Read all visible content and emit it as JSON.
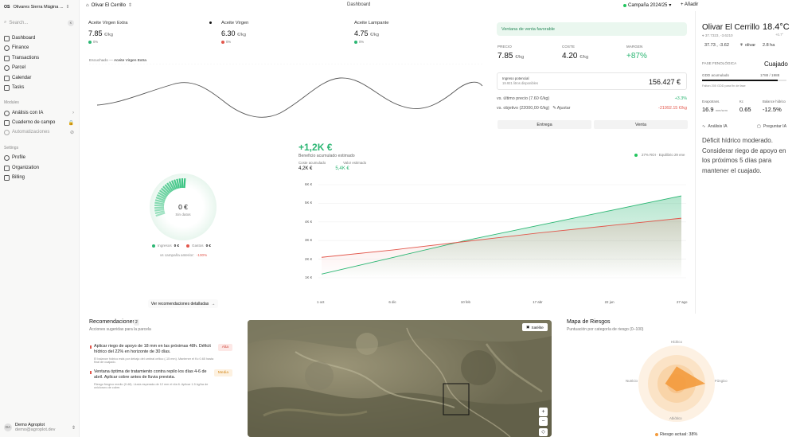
{
  "sidebar": {
    "org_badge": "OS",
    "org_name": "Olivares Sierra Mágina ...",
    "search_placeholder": "Search...",
    "search_shortcut": "K",
    "items": [
      {
        "label": "Dashboard",
        "icon": "dashboard-icon"
      },
      {
        "label": "Finance",
        "icon": "finance-icon"
      },
      {
        "label": "Transactions",
        "icon": "transactions-icon"
      },
      {
        "label": "Parcel",
        "icon": "parcel-icon"
      },
      {
        "label": "Calendar",
        "icon": "calendar-icon"
      },
      {
        "label": "Tasks",
        "icon": "tasks-icon"
      }
    ],
    "modules_label": "Modules",
    "modules": [
      {
        "label": "Análisis con IA",
        "tail": "›"
      },
      {
        "label": "Cuaderno de campo",
        "tail": "🔒"
      },
      {
        "label": "Automatizaciones",
        "tail": "⊘"
      }
    ],
    "settings_label": "Settings",
    "settings": [
      {
        "label": "Profile"
      },
      {
        "label": "Organization"
      },
      {
        "label": "Billing"
      }
    ],
    "user": {
      "initials": "DA",
      "name": "Demo Agroplot",
      "email": "demo@agroplot.dev"
    }
  },
  "topbar": {
    "parcel": "Olivar El Cerrillo",
    "title": "Dashboard",
    "campaign": "Campaña 2024/25",
    "add": "Añadir"
  },
  "prices": [
    {
      "label": "Aceite Virgen Extra",
      "value": "7.85",
      "unit": "€/kg",
      "change": "0%",
      "color": "#2bb673"
    },
    {
      "label": "Aceite Virgen",
      "value": "6.30",
      "unit": "€/kg",
      "change": "0%",
      "color": "#e2574c"
    },
    {
      "label": "Aceite Lampante",
      "value": "4.75",
      "unit": "€/kg",
      "change": "0%",
      "color": "#2bb673"
    }
  ],
  "price_chart": {
    "caption_prefix": "Escuchado —",
    "caption_series": "Aceite Virgen Extra"
  },
  "donut": {
    "value": "0 €",
    "sub": "Sin datos",
    "income_label": "Ingresos",
    "income_val": "0 €",
    "cost_label": "Gastos",
    "cost_val": "0 €",
    "vs_label": "vs campaña anterior:",
    "vs_val": "-100%"
  },
  "detailed_button": "Ver recomendaciones detalladas",
  "profit": {
    "value": "+1,2K €",
    "sub": "Beneficio acumulado estimado",
    "cost_label": "Coste acumulado",
    "income_label": "Valor estimado",
    "cost_val": "4,2K €",
    "income_val": "5,4K €",
    "legend": "27% ROI · Equilibrio 29 ene"
  },
  "chart_data": {
    "type": "area",
    "x": [
      "1 oct",
      "6 dic",
      "10 feb",
      "17 abr",
      "22 jun",
      "27 ago"
    ],
    "y_ticks": [
      "1K €",
      "2K €",
      "3K €",
      "4K €",
      "5K €",
      "6K €"
    ],
    "ylim": [
      1000,
      6000
    ],
    "series": [
      {
        "values": [
          1200,
          2100,
          3000,
          3800,
          4600,
          5400
        ],
        "color": "#2bb673"
      },
      {
        "values": [
          2100,
          2500,
          2950,
          3400,
          3800,
          4200
        ],
        "color": "#e2574c"
      }
    ]
  },
  "sale_panel": {
    "banner": "Ventana de venta favorable",
    "kpis": [
      {
        "label": "PRECIO",
        "value": "7.85",
        "unit": "€/kg"
      },
      {
        "label": "COSTE",
        "value": "4.20",
        "unit": "€/kg"
      },
      {
        "label": "MARGEN",
        "value": "+87%",
        "unit": ""
      }
    ],
    "revenue_label": "Ingreso potencial",
    "revenue_sub": "19.921 litros disponibles",
    "revenue_value": "156.427 €",
    "cmp1_label": "vs. último precio (7.60 €/kg)",
    "cmp1_val": "+3.3%",
    "cmp2_label": "vs. objetivo (22000,00 €/kg)",
    "cmp2_adjust": "Ajustar",
    "cmp2_val": "-21992.15 €/kg",
    "tab1": "Entrega",
    "tab2": "Venta"
  },
  "right_panel": {
    "title": "Olivar El Cerrillo",
    "temp": "18.4°C",
    "coords": "37.7323, -3.6210",
    "temp_sub": "+0.7°",
    "chips": [
      "37.73 , -3.62",
      "olivar",
      "2.8 ha"
    ],
    "phase_label": "FASE FENOLÓGICA",
    "phase_val": "Cuajado",
    "gdd_label": "GDD acumulado",
    "gdd_val": "1788 / 1988",
    "gdd_pct": 90,
    "gdd_note": "Faltan 200 GDD para fin de fase",
    "metrics": [
      {
        "label": "Evapotrans.",
        "value": "16.9",
        "unit": "mm/sem"
      },
      {
        "label": "Kc",
        "value": "0.65",
        "unit": ""
      },
      {
        "label": "Balance hídrico",
        "value": "-12.5%",
        "unit": ""
      }
    ],
    "ai_label": "Análisis IA",
    "ask_label": "Preguntar IA",
    "ai_text": "Déficit hídrico moderado. Considerar riego de apoyo en los próximos 5 días para mantener el cuajado."
  },
  "recommendations": {
    "title": "Recomendaciones",
    "count": "2",
    "sub": "Acciones sugeridas para la parcela",
    "items": [
      {
        "text": "Aplicar riego de apoyo de 18 mm en las próximas 48h. Déficit hídrico del 22% en horizonte de 30 días.",
        "detail": "El balance hídrico está por debajo del umbral crítico (-15 mm). Mantener el Kc 0.65 hasta final de cuajado.",
        "tag": "Alta",
        "tag_bg": "#fde8e6",
        "tag_color": "#d0453a"
      },
      {
        "text": "Ventana óptima de tratamiento contra repilo los días 4-6 de abril. Aplicar cobre antes de lluvia prevista.",
        "detail": "Riesgo fúngico medio (0.48). Lluvia esperada de 12 mm el día 6. Aplicar 1.5 kg/ha de oxicloruro de cobre.",
        "tag": "Media",
        "tag_bg": "#fdf1e0",
        "tag_color": "#d48a1c"
      }
    ]
  },
  "map": {
    "satellite": "Satélite",
    "zoom_in": "+",
    "zoom_out": "−"
  },
  "risk": {
    "title": "Mapa de Riesgos",
    "sub": "Puntuación por categoría de riesgo (0–100)",
    "axes": [
      "Hídrico",
      "Fúngico",
      "Abiótico",
      "Nutricio"
    ],
    "values": [
      45,
      75,
      20,
      30
    ],
    "current_label": "Riesgo actual:",
    "current_val": "38%"
  }
}
